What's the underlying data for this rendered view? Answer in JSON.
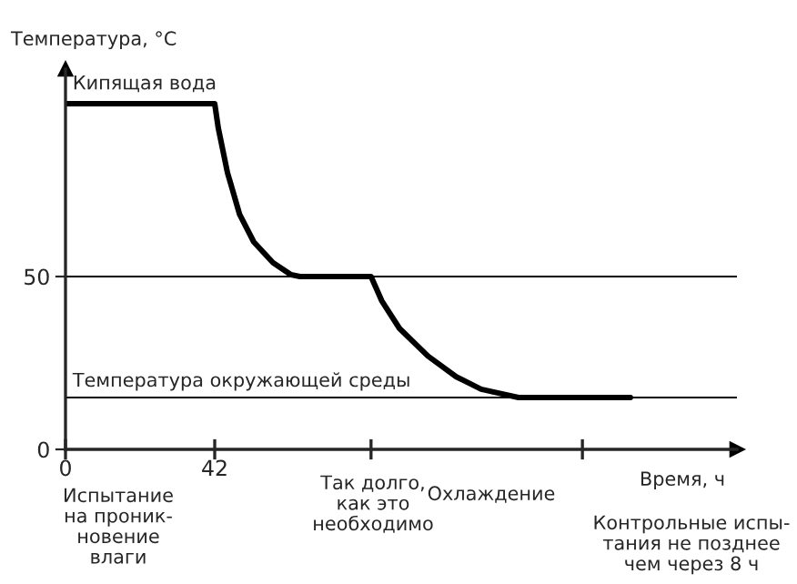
{
  "chart_data": {
    "type": "line",
    "xlabel": "Время, ч",
    "ylabel": "Температура, °C",
    "x": [
      0,
      42,
      43,
      45.6,
      49,
      53,
      58.4,
      63.5,
      66,
      86,
      89,
      94,
      102,
      110,
      117,
      127.5,
      159
    ],
    "series": [
      {
        "color": "#000000",
        "values": [
          100,
          100,
          93,
          80,
          68,
          60,
          54,
          50.5,
          50,
          50,
          43,
          35,
          27,
          21,
          17.4,
          15,
          15
        ]
      }
    ],
    "xlim": [
      0,
      189
    ],
    "ylim": [
      0,
      110
    ],
    "xticks": [
      0,
      42,
      {
        "value": 86,
        "label": null
      },
      {
        "value": 145.5,
        "label": null
      }
    ],
    "yticks": [
      0,
      50
    ],
    "ref_lines": [
      {
        "axis": "y",
        "value": 50,
        "label": null,
        "color": "#000000"
      },
      {
        "axis": "y",
        "value": 15,
        "label": "Температура окружающей среды",
        "color": "#000000"
      }
    ],
    "annotations": [
      {
        "text": "Кипящая вода",
        "x": 0,
        "y": 100
      },
      "Испытание\nна проник-\nновение\nвлаги",
      "Так долго,\nкак это\nнеобходимо",
      "Охлаждение",
      "Контрольные испы-\nтания не позднее\nчем через 8 ч"
    ],
    "grid": false,
    "legend": false,
    "marker": "none",
    "line_style": "solid"
  }
}
